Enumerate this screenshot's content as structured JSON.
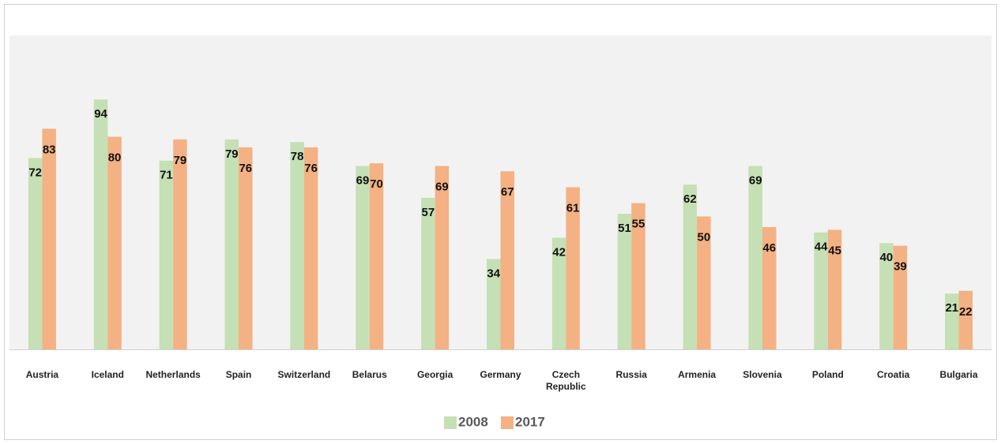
{
  "chart_data": {
    "type": "bar",
    "categories": [
      "Austria",
      "Iceland",
      "Netherlands",
      "Spain",
      "Switzerland",
      "Belarus",
      "Georgia",
      "Germany",
      "Czech Republic",
      "Russia",
      "Armenia",
      "Slovenia",
      "Poland",
      "Croatia",
      "Bulgaria"
    ],
    "series": [
      {
        "name": "2008",
        "color": "#c5e0b4",
        "values": [
          72,
          94,
          71,
          79,
          78,
          69,
          57,
          34,
          42,
          51,
          62,
          69,
          44,
          40,
          21
        ]
      },
      {
        "name": "2017",
        "color": "#f4b183",
        "values": [
          83,
          80,
          79,
          76,
          76,
          70,
          69,
          67,
          61,
          55,
          50,
          46,
          45,
          39,
          22
        ]
      }
    ],
    "legend": "bottom"
  }
}
